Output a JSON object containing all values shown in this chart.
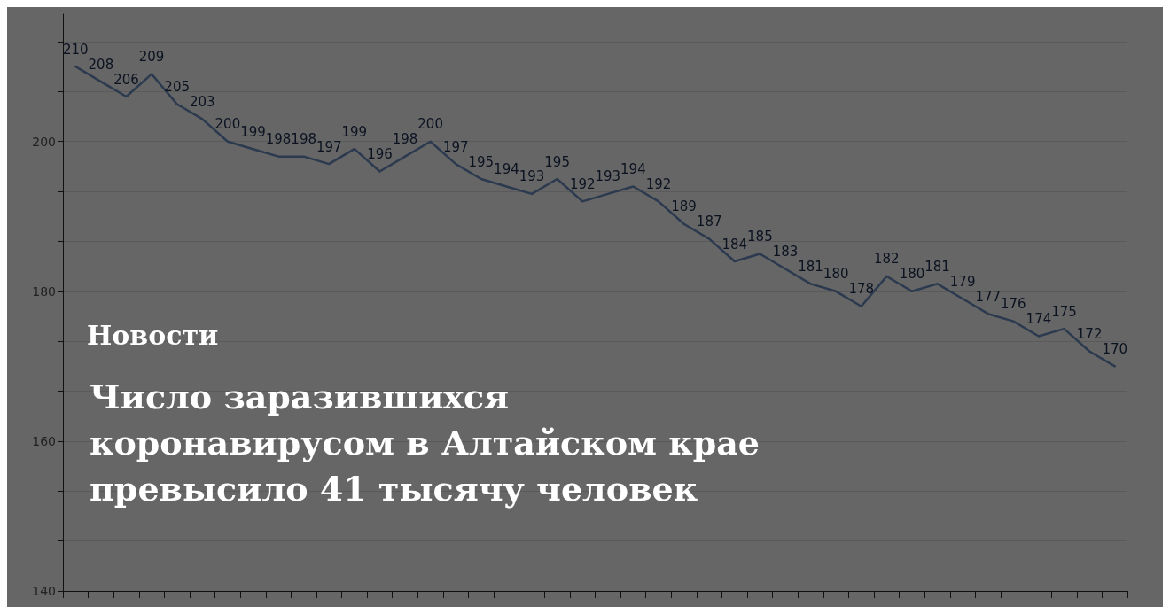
{
  "chart_data": {
    "type": "line",
    "title": "Число заразившихся коронавирусом в Алтайском крае превысило 41 тысячу человек",
    "annotations": [
      "Новости"
    ],
    "categories": [
      null,
      null,
      null,
      null,
      null,
      null,
      null,
      null,
      null,
      null,
      null,
      null,
      null,
      null,
      null,
      null,
      null,
      null,
      null,
      null,
      null,
      null,
      null,
      null,
      null,
      null,
      null,
      null,
      null,
      null,
      null,
      null,
      null,
      null,
      null,
      null,
      null,
      null,
      null,
      null,
      null,
      null
    ],
    "series": [
      {
        "color": "#2c3a4f",
        "values": [
          210,
          208,
          206,
          209,
          205,
          203,
          200,
          199,
          198,
          198,
          197,
          199,
          196,
          198,
          200,
          197,
          195,
          194,
          193,
          195,
          192,
          193,
          194,
          192,
          189,
          187,
          184,
          185,
          183,
          181,
          180,
          178,
          182,
          180,
          181,
          179,
          177,
          176,
          174,
          175,
          172,
          170
        ]
      }
    ],
    "ylim": [
      140,
      217
    ],
    "yticks": [
      140,
      {
        "value": 146.67,
        "label": null
      },
      {
        "value": 153.33,
        "label": null
      },
      160,
      {
        "value": 166.67,
        "label": null
      },
      {
        "value": 173.33,
        "label": null
      },
      180,
      {
        "value": 186.67,
        "label": null
      },
      {
        "value": 193.33,
        "label": null
      },
      200,
      {
        "value": 206.67,
        "label": null
      },
      {
        "value": 213.33,
        "label": null
      }
    ],
    "grid": "y",
    "data_labels": true,
    "marker": "none",
    "line_style": "solid"
  }
}
